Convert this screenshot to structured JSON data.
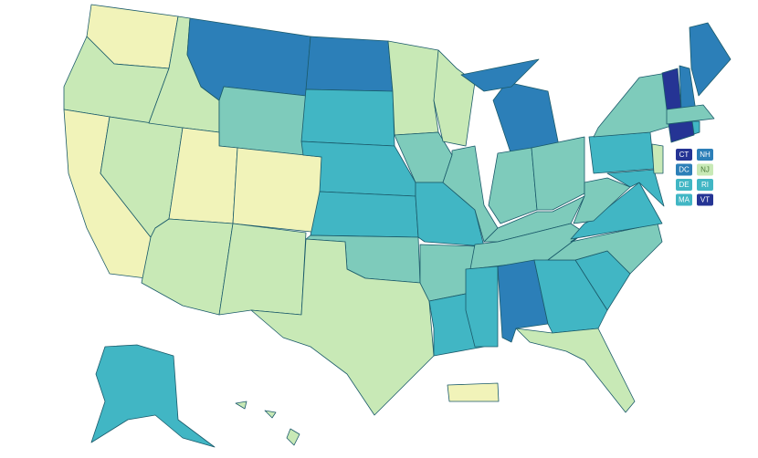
{
  "state_labels": [
    "CT",
    "NH",
    "DC",
    "NJ",
    "DE",
    "RI",
    "MA",
    "VT"
  ]
}
